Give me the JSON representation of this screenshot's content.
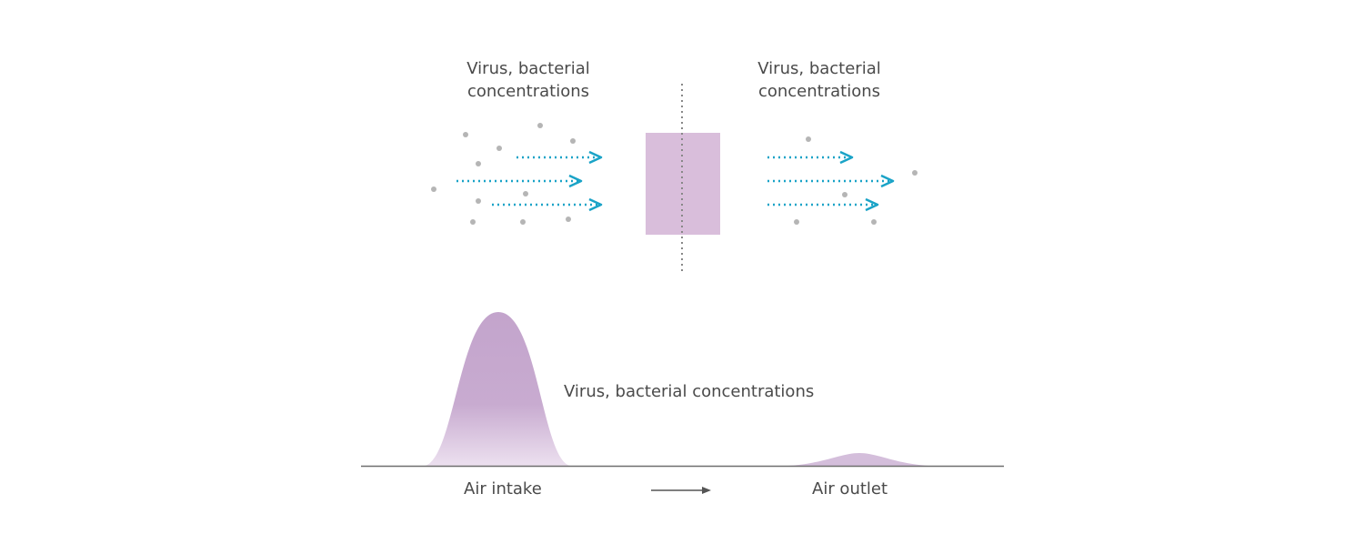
{
  "top": {
    "left_heading": "Virus, bacterial\nconcentrations",
    "right_heading": "Virus, bacterial\nconcentrations"
  },
  "bottom": {
    "band_label": "Virus, bacterial concentrations",
    "intake_label": "Air intake",
    "outlet_label": "Air outlet"
  },
  "colors": {
    "filter": "#d9bedb",
    "arrow": "#1aa3c7",
    "particle": "#b5b5b5",
    "curve": "#c3a4cc",
    "text": "#4a4a4a"
  }
}
